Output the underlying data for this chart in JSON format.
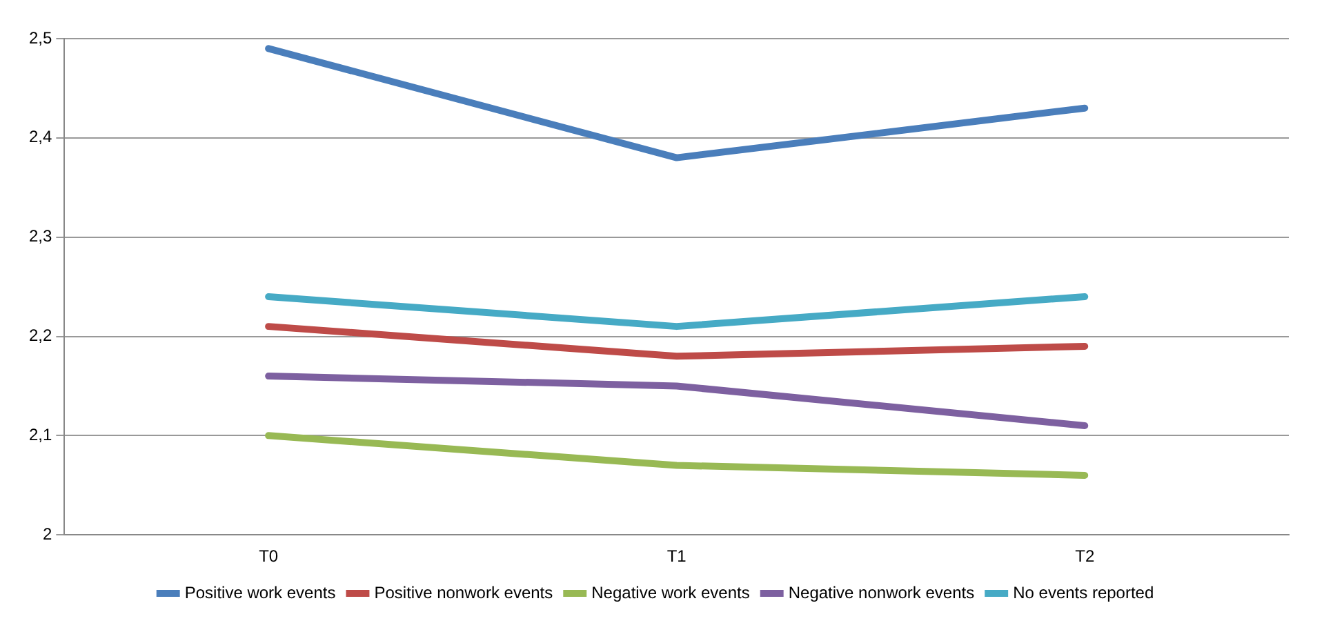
{
  "chart_data": {
    "type": "line",
    "categories": [
      "T0",
      "T1",
      "T2"
    ],
    "series": [
      {
        "name": "Positive work events",
        "color": "#4a7ebb",
        "values": [
          2.49,
          2.38,
          2.43
        ]
      },
      {
        "name": "Positive nonwork events",
        "color": "#be4b48",
        "values": [
          2.21,
          2.18,
          2.19
        ]
      },
      {
        "name": "Negative work events",
        "color": "#98b954",
        "values": [
          2.1,
          2.07,
          2.06
        ]
      },
      {
        "name": "Negative nonwork events",
        "color": "#7d60a0",
        "values": [
          2.16,
          2.15,
          2.11
        ]
      },
      {
        "name": "No events reported",
        "color": "#46aac5",
        "values": [
          2.24,
          2.21,
          2.24
        ]
      }
    ],
    "ylim": [
      2,
      2.5
    ],
    "yticks": [
      2,
      {
        "value": 2.1,
        "label": "2,1"
      },
      {
        "value": 2.2,
        "label": "2,2"
      },
      {
        "value": 2.3,
        "label": "2,3"
      },
      {
        "value": 2.4,
        "label": "2,4"
      },
      {
        "value": 2.5,
        "label": "2,5"
      }
    ],
    "grid": "y",
    "legend": "bottom",
    "marker": "none",
    "line_style": "solid"
  }
}
